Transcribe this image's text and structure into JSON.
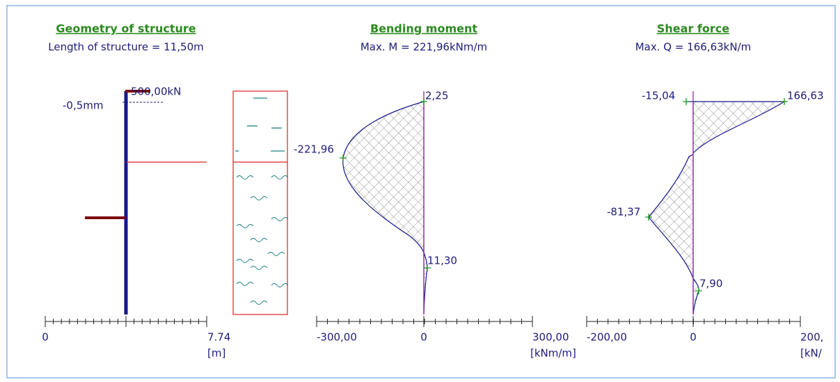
{
  "panels": [
    {
      "title": "Geometry of structure",
      "subtitle": "Length of structure = 11,50m",
      "labels": [
        "-0,5mm",
        "500,00kN"
      ],
      "axis": {
        "ticks": [
          "0",
          "7.74"
        ],
        "unit": "[m]"
      }
    },
    {
      "title": "Bending moment",
      "subtitle": "Max. M = 221,96kNm/m",
      "labels": [
        "2,25",
        "-221,96",
        "11,30"
      ],
      "axis": {
        "ticks": [
          "-300,00",
          "0",
          "300,00"
        ],
        "unit": "[kNm/m]"
      }
    },
    {
      "title": "Shear force",
      "subtitle": "Max. Q = 166,63kN/m",
      "labels": [
        "-15,04",
        "166,63",
        "-81,37",
        "7,90"
      ],
      "axis": {
        "ticks": [
          "-200,00",
          "0",
          "200,"
        ],
        "unit": "[kN/"
      }
    }
  ]
}
